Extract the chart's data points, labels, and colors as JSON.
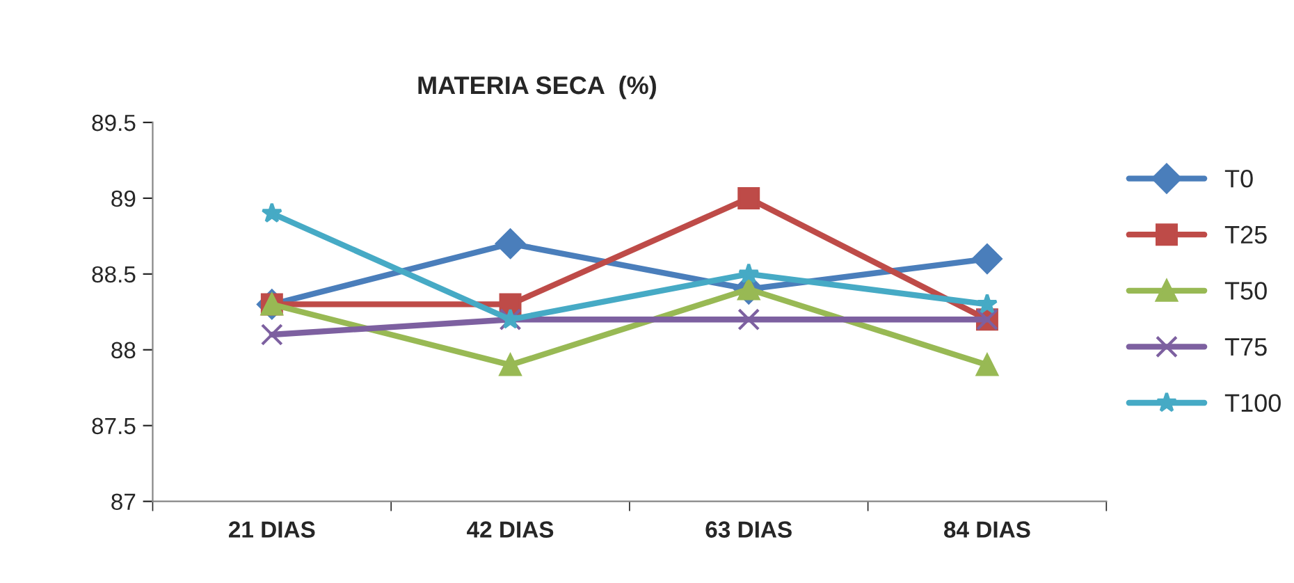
{
  "chart_data": {
    "type": "line",
    "title": "MATERIA SECA  (%)",
    "categories": [
      "21 DIAS",
      "42 DIAS",
      "63 DIAS",
      "84 DIAS"
    ],
    "series": [
      {
        "name": "T0",
        "color": "#4a7ebb",
        "marker": "diamond",
        "values": [
          88.3,
          88.7,
          88.4,
          88.6
        ]
      },
      {
        "name": "T25",
        "color": "#be4b48",
        "marker": "square",
        "values": [
          88.3,
          88.3,
          89.0,
          88.2
        ]
      },
      {
        "name": "T50",
        "color": "#98b954",
        "marker": "triangle",
        "values": [
          88.3,
          87.9,
          88.4,
          87.9
        ]
      },
      {
        "name": "T75",
        "color": "#7d60a0",
        "marker": "cross",
        "values": [
          88.1,
          88.2,
          88.2,
          88.2
        ]
      },
      {
        "name": "T100",
        "color": "#46aac5",
        "marker": "star",
        "values": [
          88.9,
          88.2,
          88.5,
          88.3
        ]
      }
    ],
    "ylim": [
      87,
      89.5
    ],
    "yticks": [
      87,
      87.5,
      88,
      88.5,
      89,
      89.5
    ],
    "grid": false,
    "legend": "right"
  }
}
